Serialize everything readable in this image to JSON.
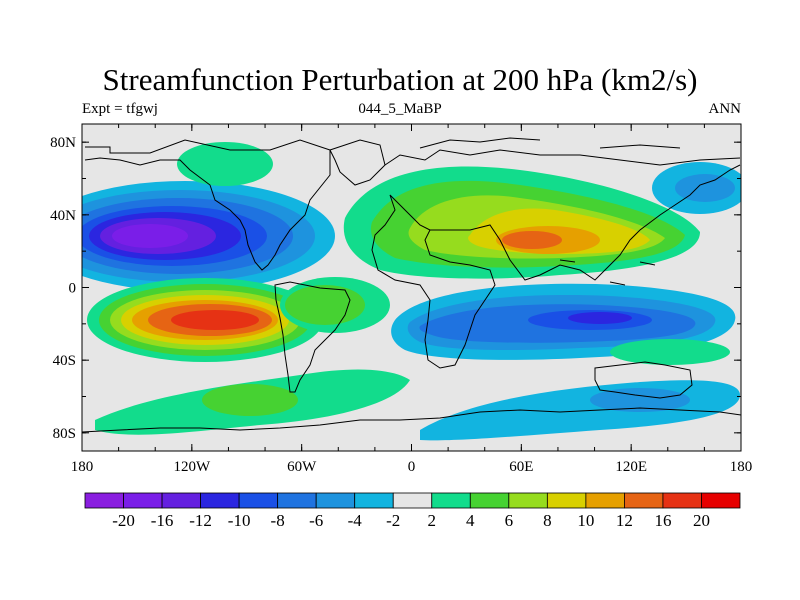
{
  "title": "Streamfunction Perturbation at 200 hPa (km2/s)",
  "subtitle_left": "Expt = tfgwj",
  "subtitle_center": "044_5_MaBP",
  "subtitle_right": "ANN",
  "map": {
    "projection": "cylindrical equidistant",
    "lon_range": [
      -180,
      180
    ],
    "lat_range": [
      -90,
      90
    ],
    "x_tick_labels": [
      "180",
      "120W",
      "60W",
      "0",
      "60E",
      "120E",
      "180"
    ],
    "y_tick_labels": [
      "80N",
      "40N",
      "0",
      "40S",
      "80S"
    ],
    "background_color": "#e6e6e6",
    "coastline_color": "#000000"
  },
  "colorbar": {
    "labels": [
      "-20",
      "-16",
      "-12",
      "-10",
      "-8",
      "-6",
      "-4",
      "-2",
      "2",
      "4",
      "6",
      "8",
      "10",
      "12",
      "16",
      "20"
    ],
    "colors": [
      "#8a1ee0",
      "#7a1ee8",
      "#6420e0",
      "#2b26e0",
      "#1a50e6",
      "#1f73e0",
      "#1e93de",
      "#12b4e0",
      "#e6e6e6",
      "#12dc8c",
      "#46d232",
      "#96dc1e",
      "#d8d000",
      "#e6a000",
      "#e66414",
      "#e63214",
      "#e60000"
    ]
  }
}
